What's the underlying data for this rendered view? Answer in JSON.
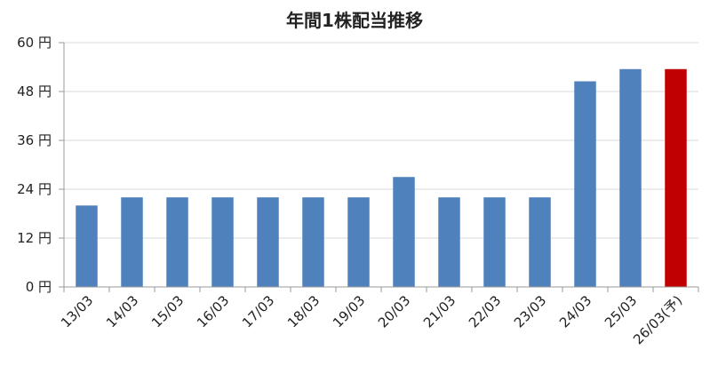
{
  "chart_data": {
    "type": "bar",
    "title": "年間1株配当推移",
    "xlabel": "",
    "ylabel": "",
    "categories": [
      "13/03",
      "14/03",
      "15/03",
      "16/03",
      "17/03",
      "18/03",
      "19/03",
      "20/03",
      "21/03",
      "22/03",
      "23/03",
      "24/03",
      "25/03",
      "26/03(予)"
    ],
    "values": [
      20,
      22,
      22,
      22,
      22,
      22,
      22,
      27,
      22,
      22,
      22,
      50.5,
      53.5,
      53.5
    ],
    "highlight_index": 13,
    "ylim": [
      0,
      60
    ],
    "yticks": [
      0,
      12,
      24,
      36,
      48,
      60
    ],
    "ytick_unit": "円",
    "grid": true,
    "legend": "none",
    "colors": {
      "bar": "#4f81bd",
      "highlight": "#c00000"
    }
  }
}
